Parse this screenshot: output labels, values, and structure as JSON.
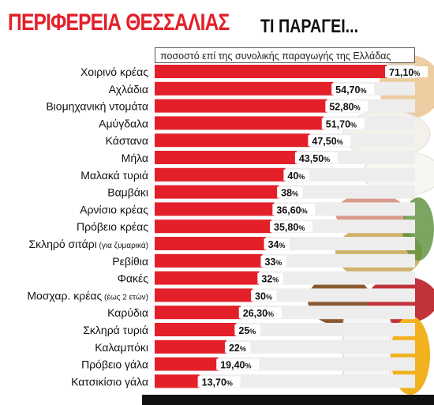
{
  "header": {
    "title_red": "ΠΕΡΙΦΕΡΕΙΑ ΘΕΣΣΑΛΙΑΣ",
    "title_black": "ΤΙ ΠΑΡΑΓΕΙ..."
  },
  "chart_data": {
    "type": "bar",
    "orientation": "horizontal",
    "subtitle": "ποσοστό επί της συνολικής παραγωγής της Ελλάδας",
    "bar_color": "#e3202a",
    "categories": [
      "Χοιρινό κρέας",
      "Αχλάδια",
      "Βιομηχανική ντομάτα",
      "Αμύγδαλα",
      "Κάστανα",
      "Μήλα",
      "Μαλακά τυριά",
      "Βαμβάκι",
      "Αρνίσιο κρέας",
      "Πρόβειο κρέας",
      "Σκληρό σιτάρι",
      "Ρεβίθια",
      "Φακές",
      "Μοσχαρ. κρέας",
      "Καρύδια",
      "Σκληρά τυριά",
      "Καλαμπόκι",
      "Πρόβειο γάλα",
      "Κατσικίσιο γάλα"
    ],
    "category_notes": [
      "",
      "",
      "",
      "",
      "",
      "",
      "",
      "",
      "",
      "",
      "(για ζυμαρικά)",
      "",
      "",
      "(έως 2 ετών)",
      "",
      "",
      "",
      "",
      ""
    ],
    "values": [
      71.1,
      54.7,
      52.8,
      51.7,
      47.5,
      43.5,
      40,
      38,
      36.6,
      35.8,
      34,
      33,
      32,
      30,
      26.3,
      25,
      22,
      19.4,
      13.7
    ],
    "value_labels": [
      "71,10",
      "54,70",
      "52,80",
      "51,70",
      "47,50",
      "43,50",
      "40",
      "38",
      "36,60",
      "35,80",
      "34",
      "33",
      "32",
      "30",
      "26,30",
      "25",
      "22",
      "19,40",
      "13,70"
    ],
    "unit": "%",
    "xlim": [
      0,
      71.1
    ]
  }
}
